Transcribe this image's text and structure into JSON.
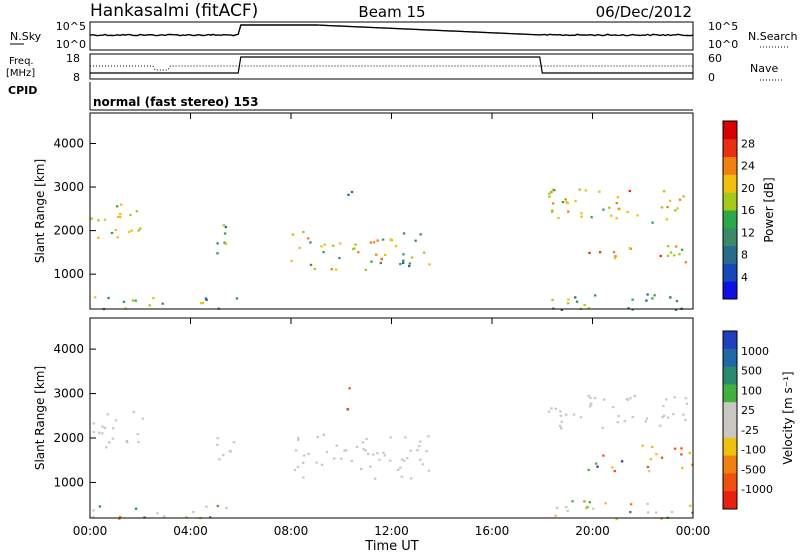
{
  "header": {
    "station": "Hankasalmi (fitACF)",
    "beam": "Beam 15",
    "date": "06/Dec/2012"
  },
  "top_panels": {
    "nsky_label": "N.Sky",
    "freq_label_line1": "Freq.",
    "freq_label_line2": "[MHz]",
    "cpid_label": "CPID",
    "nsearch_label": "N.Search",
    "nave_label": "Nave",
    "noise_ticks_left": [
      "10^5",
      "10^0"
    ],
    "noise_ticks_right": [
      "10^5",
      "10^0"
    ],
    "freq_ticks": [
      "18",
      "8"
    ],
    "nave_ticks": [
      "60",
      "0"
    ],
    "cpid_text": "normal (fast stereo) 153"
  },
  "colorbars": {
    "power": {
      "label": "Power [dB]",
      "ticks": [
        "28",
        "24",
        "20",
        "16",
        "12",
        "8",
        "4"
      ],
      "colors": [
        "#1010e0",
        "#1848b8",
        "#2a6a8a",
        "#3a8a68",
        "#2aa84a",
        "#a6c818",
        "#f0c010",
        "#f08010",
        "#e83010",
        "#d80000"
      ]
    },
    "velocity": {
      "label": "Velocity [m s⁻¹]",
      "ticks": [
        "1000",
        "500",
        "100",
        "25",
        "-25",
        "-100",
        "-500",
        "-1000"
      ],
      "colors": [
        "#2040c0",
        "#2068a8",
        "#2a8a70",
        "#40b040",
        "#c8c8c0",
        "#c8c8c0",
        "#f0c010",
        "#f08010",
        "#f05010",
        "#e82010"
      ]
    }
  },
  "chart_data": [
    {
      "type": "heatmap",
      "name": "power",
      "ylabel": "Slant Range [km]",
      "ylim": [
        200,
        4700
      ],
      "yticks": [
        "4000",
        "3000",
        "2000",
        "1000"
      ],
      "xlim": [
        0,
        24
      ],
      "regions": [
        {
          "t0": 0.0,
          "t1": 2.2,
          "r0": 1750,
          "r1": 2650,
          "c": [
            0.55,
            0.6,
            0.65
          ]
        },
        {
          "t0": 5.0,
          "t1": 5.9,
          "r0": 1400,
          "r1": 2200,
          "c": [
            0.3,
            0.4,
            0.55
          ]
        },
        {
          "t0": 7.8,
          "t1": 12.0,
          "r0": 1100,
          "r1": 2000,
          "c": [
            0.45,
            0.55,
            0.7
          ]
        },
        {
          "t0": 12.0,
          "t1": 13.6,
          "r0": 1200,
          "r1": 2100,
          "c": [
            0.35,
            0.45,
            0.6
          ]
        },
        {
          "t0": 10.2,
          "t1": 10.6,
          "r0": 2650,
          "r1": 3200,
          "c": [
            0.2,
            0.25,
            0.35
          ]
        },
        {
          "t0": 18.2,
          "t1": 24.0,
          "r0": 2200,
          "r1": 3000,
          "c": [
            0.5,
            0.6,
            0.72
          ]
        },
        {
          "t0": 19.6,
          "t1": 21.5,
          "r0": 1250,
          "r1": 1650,
          "c": [
            0.55,
            0.7,
            0.8
          ]
        },
        {
          "t0": 21.8,
          "t1": 24.0,
          "r0": 1250,
          "r1": 1700,
          "c": [
            0.5,
            0.65,
            0.8
          ]
        },
        {
          "t0": 0.0,
          "t1": 6.0,
          "r0": 200,
          "r1": 500,
          "c": [
            0.3,
            0.45,
            0.6
          ]
        },
        {
          "t0": 18.0,
          "t1": 24.0,
          "r0": 200,
          "r1": 600,
          "c": [
            0.3,
            0.45,
            0.6
          ]
        }
      ]
    },
    {
      "type": "heatmap",
      "name": "velocity",
      "ylabel": "Slant Range [km]",
      "ylim": [
        200,
        4700
      ],
      "yticks": [
        "4000",
        "3000",
        "2000",
        "1000"
      ],
      "xlim": [
        0,
        24
      ],
      "xlabel": "Time UT",
      "xticks": [
        "00:00",
        "04:00",
        "08:00",
        "12:00",
        "16:00",
        "20:00",
        "00:00"
      ],
      "regions": [
        {
          "t0": 0.0,
          "t1": 2.2,
          "r0": 1750,
          "r1": 2650,
          "c": [
            0.45,
            0.5,
            0.55
          ]
        },
        {
          "t0": 5.0,
          "t1": 5.9,
          "r0": 1400,
          "r1": 2200,
          "c": [
            0.45,
            0.5,
            0.55
          ]
        },
        {
          "t0": 7.8,
          "t1": 13.6,
          "r0": 1100,
          "r1": 2100,
          "c": [
            0.45,
            0.5,
            0.55
          ]
        },
        {
          "t0": 18.2,
          "t1": 24.0,
          "r0": 2200,
          "r1": 3000,
          "c": [
            0.45,
            0.5,
            0.55
          ]
        },
        {
          "t0": 19.6,
          "t1": 21.5,
          "r0": 1250,
          "r1": 1650,
          "c": [
            0.0,
            0.3,
            0.75
          ]
        },
        {
          "t0": 21.8,
          "t1": 24.0,
          "r0": 1250,
          "r1": 1900,
          "c": [
            0.6,
            0.75,
            0.9
          ]
        },
        {
          "t0": 10.2,
          "t1": 10.6,
          "r0": 2650,
          "r1": 3200,
          "c": [
            0.75,
            0.85,
            0.9
          ]
        },
        {
          "t0": 0.0,
          "t1": 6.0,
          "r0": 200,
          "r1": 500,
          "c": [
            0.3,
            0.5,
            0.7
          ]
        },
        {
          "t0": 18.0,
          "t1": 24.0,
          "r0": 200,
          "r1": 600,
          "c": [
            0.3,
            0.5,
            0.7
          ]
        }
      ]
    }
  ]
}
